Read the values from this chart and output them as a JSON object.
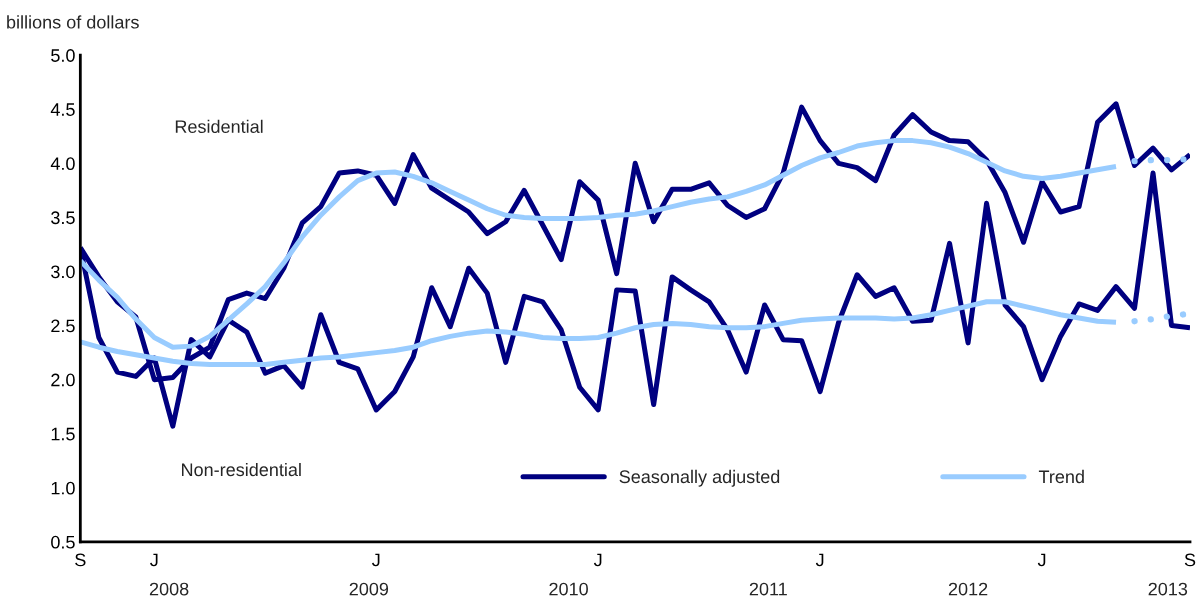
{
  "chart_data": {
    "type": "line",
    "ylabel": "billions of dollars",
    "categories": [
      "S",
      null,
      null,
      null,
      "J",
      null,
      null,
      null,
      null,
      null,
      null,
      null,
      null,
      null,
      null,
      null,
      "J",
      null,
      null,
      null,
      null,
      null,
      null,
      null,
      null,
      null,
      null,
      null,
      "J",
      null,
      null,
      null,
      null,
      null,
      null,
      null,
      null,
      null,
      null,
      null,
      "J",
      null,
      null,
      null,
      null,
      null,
      null,
      null,
      null,
      null,
      null,
      null,
      "J",
      null,
      null,
      null,
      null,
      null,
      null,
      null,
      "S"
    ],
    "series": [
      {
        "name": "Seasonally adjusted",
        "color": "#000080",
        "line_style": "solid",
        "values": [
          3.22,
          2.95,
          2.72,
          2.58,
          2.0,
          2.02,
          2.2,
          2.3,
          2.74,
          2.8,
          2.75,
          3.03,
          3.45,
          3.6,
          3.91,
          3.93,
          3.89,
          3.63,
          4.08,
          3.77,
          3.66,
          3.55,
          3.35,
          3.46,
          3.75,
          3.43,
          3.11,
          3.83,
          3.66,
          2.98,
          4.0,
          3.46,
          3.76,
          3.76,
          3.82,
          3.61,
          3.5,
          3.58,
          3.91,
          4.52,
          4.21,
          4.0,
          3.96,
          3.84,
          4.26,
          4.45,
          4.29,
          4.21,
          4.2,
          4.03,
          3.73,
          3.27,
          3.83,
          3.55,
          3.6,
          4.38,
          4.55,
          3.98,
          4.14,
          3.94,
          4.08
        ]
      },
      {
        "color": "#000080",
        "line_style": "solid",
        "values": [
          3.22,
          2.39,
          2.07,
          2.03,
          2.2,
          1.57,
          2.37,
          2.21,
          2.55,
          2.44,
          2.06,
          2.13,
          1.93,
          2.6,
          2.16,
          2.1,
          1.72,
          1.89,
          2.21,
          2.85,
          2.49,
          3.03,
          2.8,
          2.16,
          2.77,
          2.72,
          2.46,
          1.93,
          1.72,
          2.83,
          2.82,
          1.77,
          2.95,
          2.83,
          2.72,
          2.46,
          2.07,
          2.69,
          2.37,
          2.36,
          1.89,
          2.53,
          2.97,
          2.77,
          2.85,
          2.54,
          2.55,
          3.26,
          2.34,
          3.63,
          2.69,
          2.49,
          2.0,
          2.4,
          2.7,
          2.64,
          2.86,
          2.66,
          3.91,
          2.5,
          2.48
        ]
      },
      {
        "name": "Trend",
        "color": "#99ccff",
        "line_style": "solid",
        "values": [
          3.1,
          2.92,
          2.76,
          2.56,
          2.39,
          2.3,
          2.31,
          2.4,
          2.55,
          2.7,
          2.86,
          3.08,
          3.32,
          3.52,
          3.69,
          3.84,
          3.91,
          3.92,
          3.88,
          3.82,
          3.74,
          3.66,
          3.58,
          3.52,
          3.5,
          3.49,
          3.49,
          3.49,
          3.5,
          3.52,
          3.53,
          3.56,
          3.6,
          3.64,
          3.67,
          3.69,
          3.74,
          3.8,
          3.89,
          3.98,
          4.05,
          4.1,
          4.16,
          4.19,
          4.21,
          4.21,
          4.19,
          4.15,
          4.09,
          4.01,
          3.93,
          3.88,
          3.86,
          3.88,
          3.91,
          3.94,
          3.97,
          null,
          null,
          null,
          null
        ]
      },
      {
        "color": "#99ccff",
        "line_style": "solid",
        "values": [
          2.35,
          2.3,
          2.26,
          2.23,
          2.2,
          2.17,
          2.15,
          2.14,
          2.14,
          2.14,
          2.14,
          2.16,
          2.18,
          2.2,
          2.21,
          2.23,
          2.25,
          2.27,
          2.3,
          2.36,
          2.4,
          2.43,
          2.45,
          2.44,
          2.42,
          2.39,
          2.38,
          2.38,
          2.39,
          2.43,
          2.48,
          2.51,
          2.52,
          2.51,
          2.49,
          2.48,
          2.48,
          2.49,
          2.52,
          2.55,
          2.56,
          2.57,
          2.57,
          2.57,
          2.56,
          2.57,
          2.6,
          2.64,
          2.68,
          2.72,
          2.72,
          2.68,
          2.64,
          2.6,
          2.57,
          2.54,
          2.53,
          null,
          null,
          null,
          null
        ]
      },
      {
        "color": "#99ccff",
        "line_style": "dotted",
        "values": [
          null,
          null,
          null,
          null,
          null,
          null,
          null,
          null,
          null,
          null,
          null,
          null,
          null,
          null,
          null,
          null,
          null,
          null,
          null,
          null,
          null,
          null,
          null,
          null,
          null,
          null,
          null,
          null,
          null,
          null,
          null,
          null,
          null,
          null,
          null,
          null,
          null,
          null,
          null,
          null,
          null,
          null,
          null,
          null,
          null,
          null,
          null,
          null,
          null,
          null,
          null,
          null,
          null,
          null,
          null,
          null,
          null,
          4.02,
          4.03,
          4.03,
          4.04
        ]
      },
      {
        "color": "#99ccff",
        "line_style": "dotted",
        "values": [
          null,
          null,
          null,
          null,
          null,
          null,
          null,
          null,
          null,
          null,
          null,
          null,
          null,
          null,
          null,
          null,
          null,
          null,
          null,
          null,
          null,
          null,
          null,
          null,
          null,
          null,
          null,
          null,
          null,
          null,
          null,
          null,
          null,
          null,
          null,
          null,
          null,
          null,
          null,
          null,
          null,
          null,
          null,
          null,
          null,
          null,
          null,
          null,
          null,
          null,
          null,
          null,
          null,
          null,
          null,
          null,
          null,
          2.54,
          2.56,
          2.59,
          2.61
        ]
      }
    ],
    "ylim": [
      0.5,
      5.0
    ],
    "yticks": [
      0.5,
      {
        "value": 1,
        "label": "1.0"
      },
      1.5,
      {
        "value": 2,
        "label": "2.0"
      },
      2.5,
      {
        "value": 3,
        "label": "3.0"
      },
      3.5,
      {
        "value": 4,
        "label": "4.0"
      },
      4.5,
      {
        "value": 5,
        "label": "5.0"
      }
    ],
    "annotations": [
      "Residential",
      "Non-residential",
      "2008",
      "2009",
      "2010",
      "2011",
      "2012",
      "2013"
    ],
    "grid": false,
    "legend": "bottom right",
    "marker": "none"
  }
}
